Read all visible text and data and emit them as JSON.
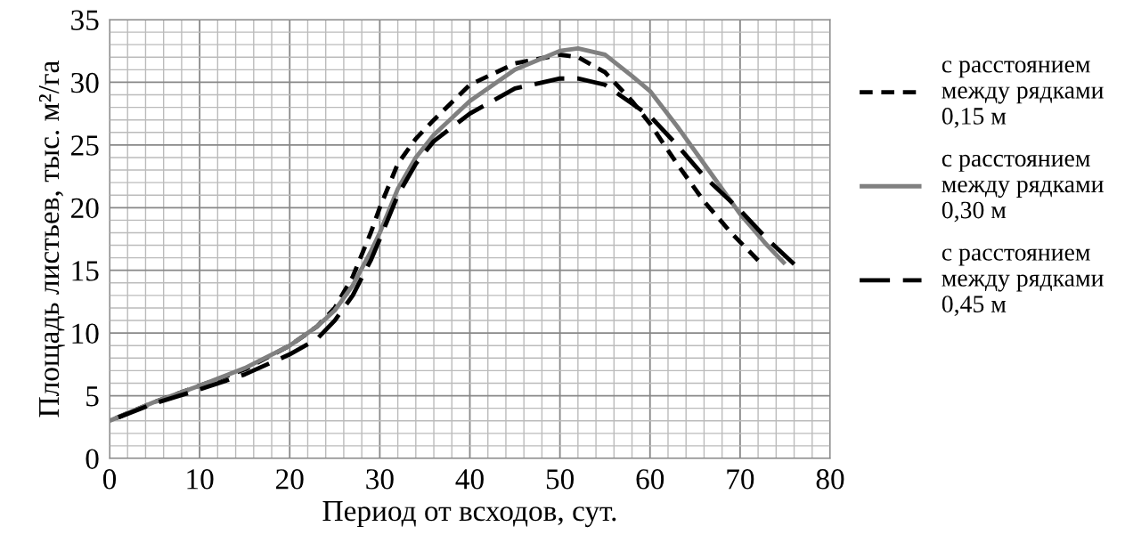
{
  "chart_data": {
    "type": "line",
    "xlabel": "Период от всходов, сут.",
    "ylabel": "Площадь листьев, тыс. м²/га",
    "xlim": [
      0,
      80
    ],
    "xticks": [
      0,
      10,
      20,
      30,
      40,
      50,
      60,
      70,
      80
    ],
    "ylim": [
      0,
      35
    ],
    "yticks": [
      0,
      5,
      10,
      15,
      20,
      25,
      30,
      35
    ],
    "grid": true,
    "legend": "right",
    "marker": "none",
    "series": [
      {
        "name": "с расстоянием между рядками 0,15 м",
        "color": "#000000",
        "line_style": "dotted",
        "x": [
          0,
          5,
          10,
          15,
          20,
          23,
          25,
          27,
          29,
          30,
          32,
          34,
          36,
          40,
          45,
          50,
          52,
          55,
          58,
          60,
          63,
          66,
          69,
          72
        ],
        "values": [
          3,
          4.5,
          5.8,
          7.1,
          9,
          10.5,
          12,
          14.5,
          18,
          20,
          23.5,
          25.5,
          27,
          29.8,
          31.5,
          32.2,
          32,
          30.8,
          28.5,
          26.7,
          23.5,
          20.5,
          18,
          15.8
        ]
      },
      {
        "name": "с расстоянием между рядками 0,30 м",
        "color": "#808080",
        "line_style": "solid",
        "x": [
          0,
          5,
          10,
          15,
          20,
          23,
          25,
          27,
          29,
          30,
          32,
          34,
          36,
          40,
          45,
          50,
          52,
          55,
          58,
          60,
          63,
          66,
          70,
          73,
          75
        ],
        "values": [
          3,
          4.5,
          5.8,
          7.2,
          9,
          10.5,
          11.8,
          13.8,
          16.5,
          18,
          21.5,
          24,
          25.8,
          28.5,
          31,
          32.5,
          32.7,
          32.2,
          30.5,
          29.3,
          26.5,
          23.5,
          19.5,
          17,
          15.5
        ]
      },
      {
        "name": "с расстоянием между рядками 0,45 м",
        "color": "#000000",
        "line_style": "dashed",
        "x": [
          0,
          5,
          10,
          15,
          20,
          23,
          25,
          27,
          29,
          30,
          32,
          34,
          36,
          40,
          45,
          50,
          52,
          55,
          58,
          60,
          63,
          66,
          70,
          73,
          76
        ],
        "values": [
          3,
          4.4,
          5.5,
          6.7,
          8.3,
          9.5,
          11,
          13,
          15.8,
          17.5,
          21,
          23.5,
          25.3,
          27.5,
          29.5,
          30.3,
          30.3,
          29.8,
          28.3,
          27.3,
          25,
          22.5,
          19.8,
          17.5,
          15.5
        ]
      }
    ]
  }
}
